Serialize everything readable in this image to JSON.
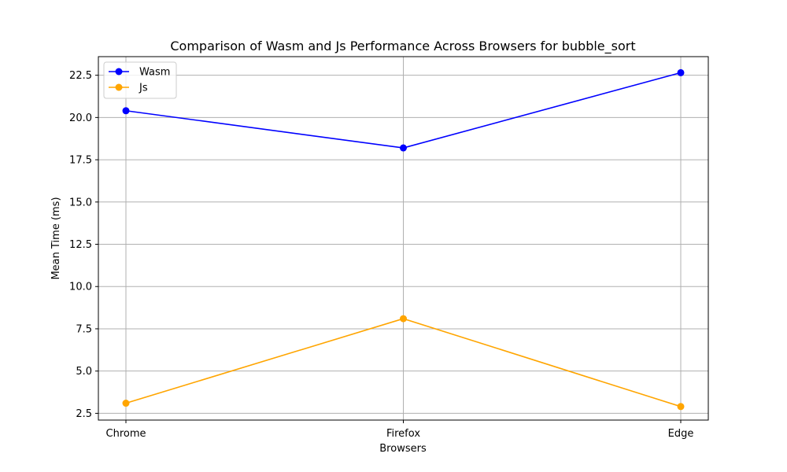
{
  "chart_data": {
    "type": "line",
    "title": "Comparison of Wasm and Js Performance Across Browsers for bubble_sort",
    "xlabel": "Browsers",
    "ylabel": "Mean Time (ms)",
    "categories": [
      "Chrome",
      "Firefox",
      "Edge"
    ],
    "ylim": [
      2.1,
      23.6
    ],
    "yticks": [
      2.5,
      5.0,
      7.5,
      10.0,
      12.5,
      15.0,
      17.5,
      20.0,
      22.5
    ],
    "ytick_labels": [
      "2.5",
      "5.0",
      "7.5",
      "10.0",
      "12.5",
      "15.0",
      "17.5",
      "20.0",
      "22.5"
    ],
    "grid": true,
    "legend_position": "top-left",
    "series": [
      {
        "name": "Wasm",
        "color": "#0000ff",
        "values": [
          20.4,
          18.2,
          22.65
        ]
      },
      {
        "name": "Js",
        "color": "#ffa500",
        "values": [
          3.1,
          8.1,
          2.9
        ]
      }
    ]
  }
}
